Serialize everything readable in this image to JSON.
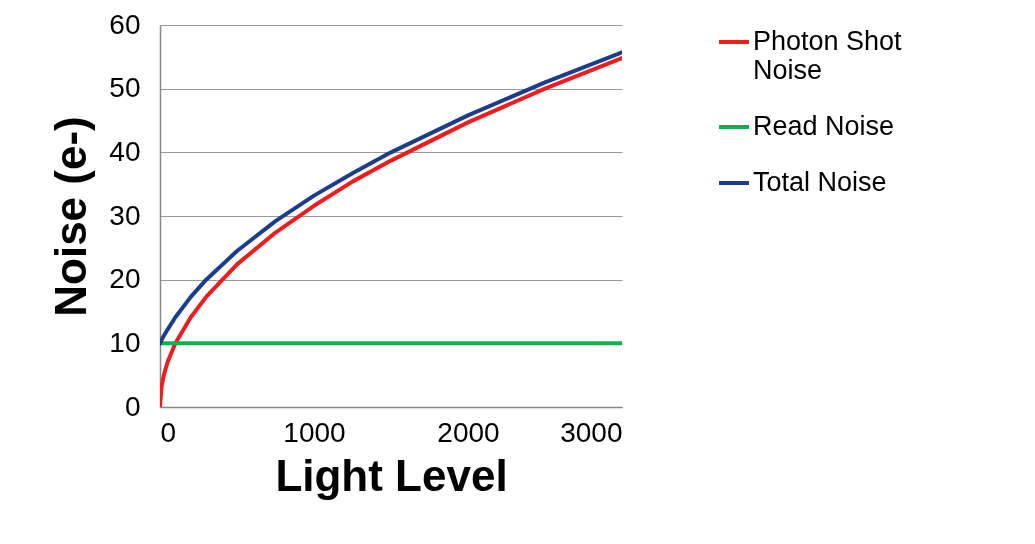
{
  "chart_data": {
    "type": "line",
    "xlabel": "Light Level",
    "ylabel": "Noise (e-)",
    "x": [
      0,
      10,
      25,
      50,
      100,
      200,
      300,
      500,
      750,
      1000,
      1250,
      1500,
      2000,
      2500,
      3000
    ],
    "series": [
      {
        "name": "Photon Shot Noise",
        "color": "#ee1c1c",
        "values": [
          0,
          3.2,
          5,
          7.1,
          10,
          14.1,
          17.3,
          22.4,
          27.4,
          31.6,
          35.4,
          38.7,
          44.7,
          50,
          54.8
        ]
      },
      {
        "name": "Read Noise",
        "color": "#12b04a",
        "values": [
          10,
          10,
          10,
          10,
          10,
          10,
          10,
          10,
          10,
          10,
          10,
          10,
          10,
          10,
          10
        ]
      },
      {
        "name": "Total Noise",
        "color": "#1a3d8c",
        "values": [
          10,
          10.5,
          11.2,
          12.2,
          14.1,
          17.3,
          20,
          24.5,
          29.2,
          33.2,
          36.7,
          40,
          45.8,
          51,
          55.7
        ]
      }
    ],
    "xlim": [
      0,
      3000
    ],
    "xticks": [
      0,
      1000,
      2000,
      3000
    ],
    "ylim": [
      0,
      60
    ],
    "yticks": [
      0,
      10,
      20,
      30,
      40,
      50,
      60
    ],
    "grid": "y",
    "legend": "right",
    "marker": "none",
    "line_style": "solid"
  }
}
